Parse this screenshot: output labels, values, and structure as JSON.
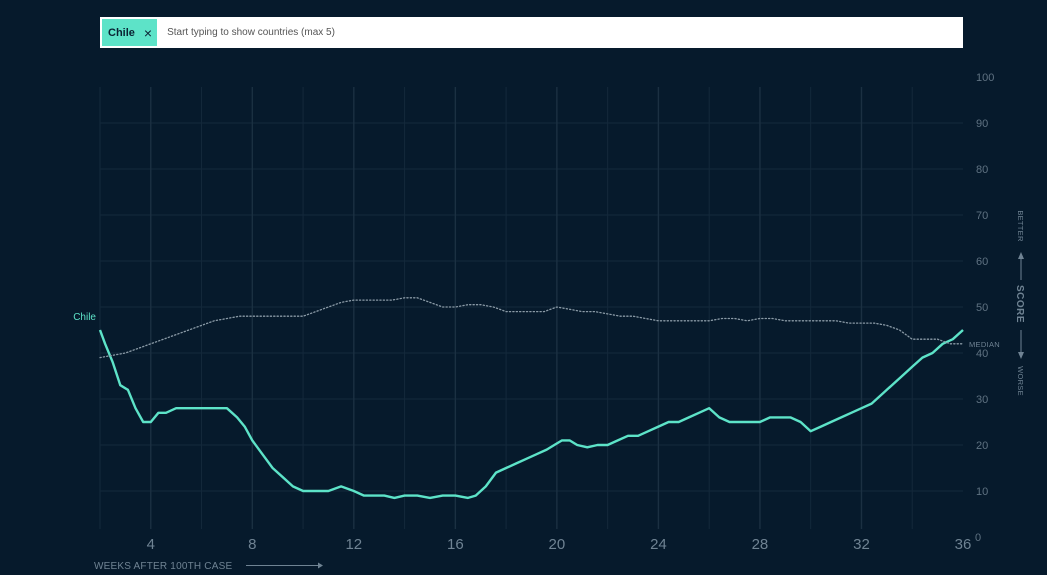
{
  "search": {
    "chip_label": "Chile",
    "chip_close": "×",
    "placeholder": "Start typing to show countries (max 5)"
  },
  "colors": {
    "background": "#061a2c",
    "series": "#5de3c8",
    "median": "#8a9aa6",
    "grid": "#14293b"
  },
  "chart_data": {
    "type": "line",
    "xlabel": "WEEKS AFTER 100TH CASE",
    "ylabel": "SCORE",
    "better_label": "BETTER",
    "worse_label": "WORSE",
    "median_label": "MEDIAN",
    "xlim": [
      2,
      36
    ],
    "ylim": [
      0,
      100
    ],
    "x_ticks": [
      4,
      8,
      12,
      16,
      20,
      24,
      28,
      32,
      36
    ],
    "y_ticks": [
      0,
      10,
      20,
      30,
      40,
      50,
      60,
      70,
      80,
      90,
      100
    ],
    "grid": true,
    "series": [
      {
        "name": "Chile",
        "style": "solid",
        "points": [
          [
            2.0,
            45
          ],
          [
            2.2,
            42
          ],
          [
            2.5,
            38
          ],
          [
            2.8,
            33
          ],
          [
            3.1,
            32
          ],
          [
            3.4,
            28
          ],
          [
            3.7,
            25
          ],
          [
            4.0,
            25
          ],
          [
            4.3,
            27
          ],
          [
            4.6,
            27
          ],
          [
            5.0,
            28
          ],
          [
            5.4,
            28
          ],
          [
            5.8,
            28
          ],
          [
            6.2,
            28
          ],
          [
            6.6,
            28
          ],
          [
            7.0,
            28
          ],
          [
            7.4,
            26
          ],
          [
            7.7,
            24
          ],
          [
            8.0,
            21
          ],
          [
            8.4,
            18
          ],
          [
            8.8,
            15
          ],
          [
            9.2,
            13
          ],
          [
            9.6,
            11
          ],
          [
            10.0,
            10
          ],
          [
            10.5,
            10
          ],
          [
            11.0,
            10
          ],
          [
            11.5,
            11
          ],
          [
            12.0,
            10
          ],
          [
            12.4,
            9
          ],
          [
            12.8,
            9
          ],
          [
            13.2,
            9
          ],
          [
            13.6,
            8.5
          ],
          [
            14.0,
            9
          ],
          [
            14.5,
            9
          ],
          [
            15.0,
            8.5
          ],
          [
            15.5,
            9
          ],
          [
            16.0,
            9
          ],
          [
            16.5,
            8.5
          ],
          [
            16.8,
            9
          ],
          [
            17.2,
            11
          ],
          [
            17.6,
            14
          ],
          [
            18.0,
            15
          ],
          [
            18.4,
            16
          ],
          [
            18.8,
            17
          ],
          [
            19.2,
            18
          ],
          [
            19.6,
            19
          ],
          [
            19.9,
            20
          ],
          [
            20.2,
            21
          ],
          [
            20.5,
            21
          ],
          [
            20.8,
            20
          ],
          [
            21.2,
            19.5
          ],
          [
            21.6,
            20
          ],
          [
            22.0,
            20
          ],
          [
            22.4,
            21
          ],
          [
            22.8,
            22
          ],
          [
            23.2,
            22
          ],
          [
            23.6,
            23
          ],
          [
            24.0,
            24
          ],
          [
            24.4,
            25
          ],
          [
            24.8,
            25
          ],
          [
            25.2,
            26
          ],
          [
            25.6,
            27
          ],
          [
            26.0,
            28
          ],
          [
            26.4,
            26
          ],
          [
            26.8,
            25
          ],
          [
            27.2,
            25
          ],
          [
            27.6,
            25
          ],
          [
            28.0,
            25
          ],
          [
            28.4,
            26
          ],
          [
            28.8,
            26
          ],
          [
            29.2,
            26
          ],
          [
            29.6,
            25
          ],
          [
            30.0,
            23
          ],
          [
            30.4,
            24
          ],
          [
            30.8,
            25
          ],
          [
            31.2,
            26
          ],
          [
            31.6,
            27
          ],
          [
            32.0,
            28
          ],
          [
            32.4,
            29
          ],
          [
            32.8,
            31
          ],
          [
            33.2,
            33
          ],
          [
            33.6,
            35
          ],
          [
            34.0,
            37
          ],
          [
            34.4,
            39
          ],
          [
            34.8,
            40
          ],
          [
            35.2,
            42
          ],
          [
            35.6,
            43
          ],
          [
            36.0,
            45
          ]
        ]
      },
      {
        "name": "MEDIAN",
        "style": "dotted",
        "points": [
          [
            2.0,
            39
          ],
          [
            2.5,
            39.5
          ],
          [
            3.0,
            40
          ],
          [
            3.5,
            41
          ],
          [
            4.0,
            42
          ],
          [
            4.5,
            43
          ],
          [
            5.0,
            44
          ],
          [
            5.5,
            45
          ],
          [
            6.0,
            46
          ],
          [
            6.5,
            47
          ],
          [
            7.0,
            47.5
          ],
          [
            7.5,
            48
          ],
          [
            8.0,
            48
          ],
          [
            8.5,
            48
          ],
          [
            9.0,
            48
          ],
          [
            9.5,
            48
          ],
          [
            10.0,
            48
          ],
          [
            10.5,
            49
          ],
          [
            11.0,
            50
          ],
          [
            11.5,
            51
          ],
          [
            12.0,
            51.5
          ],
          [
            12.5,
            51.5
          ],
          [
            13.0,
            51.5
          ],
          [
            13.5,
            51.5
          ],
          [
            14.0,
            52
          ],
          [
            14.5,
            52
          ],
          [
            15.0,
            51
          ],
          [
            15.5,
            50
          ],
          [
            16.0,
            50
          ],
          [
            16.5,
            50.5
          ],
          [
            17.0,
            50.5
          ],
          [
            17.5,
            50
          ],
          [
            18.0,
            49
          ],
          [
            18.5,
            49
          ],
          [
            19.0,
            49
          ],
          [
            19.5,
            49
          ],
          [
            20.0,
            50
          ],
          [
            20.5,
            49.5
          ],
          [
            21.0,
            49
          ],
          [
            21.5,
            49
          ],
          [
            22.0,
            48.5
          ],
          [
            22.5,
            48
          ],
          [
            23.0,
            48
          ],
          [
            23.5,
            47.5
          ],
          [
            24.0,
            47
          ],
          [
            24.5,
            47
          ],
          [
            25.0,
            47
          ],
          [
            25.5,
            47
          ],
          [
            26.0,
            47
          ],
          [
            26.5,
            47.5
          ],
          [
            27.0,
            47.5
          ],
          [
            27.5,
            47
          ],
          [
            28.0,
            47.5
          ],
          [
            28.5,
            47.5
          ],
          [
            29.0,
            47
          ],
          [
            29.5,
            47
          ],
          [
            30.0,
            47
          ],
          [
            30.5,
            47
          ],
          [
            31.0,
            47
          ],
          [
            31.5,
            46.5
          ],
          [
            32.0,
            46.5
          ],
          [
            32.5,
            46.5
          ],
          [
            33.0,
            46
          ],
          [
            33.5,
            45
          ],
          [
            34.0,
            43
          ],
          [
            34.5,
            43
          ],
          [
            35.0,
            43
          ],
          [
            35.5,
            42
          ],
          [
            36.0,
            42
          ]
        ]
      }
    ]
  }
}
